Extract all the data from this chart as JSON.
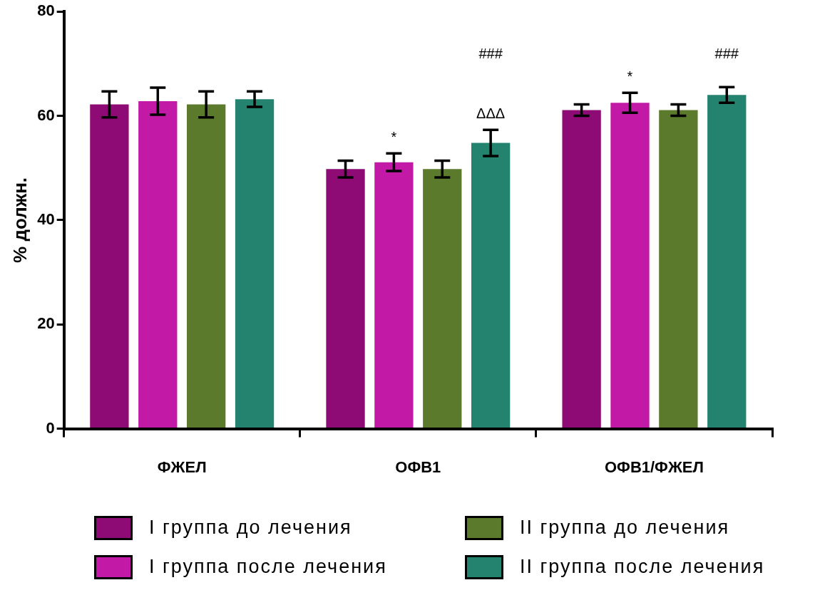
{
  "chart_data": {
    "type": "bar",
    "ylabel": "% должн.",
    "categories": [
      "ФЖЕЛ",
      "ОФВ1",
      "ОФВ1/ФЖЕЛ"
    ],
    "series": [
      {
        "name": "I группа до лечения",
        "color": "#8e0a74",
        "values": [
          62.2,
          49.8,
          61.1
        ],
        "errors": [
          2.5,
          1.6,
          1.1
        ]
      },
      {
        "name": "I группа после лечения",
        "color": "#c21aa6",
        "values": [
          62.8,
          51.1,
          62.5
        ],
        "errors": [
          2.6,
          1.7,
          1.9
        ]
      },
      {
        "name": "II группа до лечения",
        "color": "#5b7a2b",
        "values": [
          62.2,
          49.8,
          61.1
        ],
        "errors": [
          2.5,
          1.6,
          1.1
        ]
      },
      {
        "name": "II группа после лечения",
        "color": "#23836f",
        "values": [
          63.2,
          54.8,
          64.0
        ],
        "errors": [
          1.5,
          2.5,
          1.5
        ]
      }
    ],
    "annotations": [
      "*",
      "ΔΔΔ",
      "###",
      "*",
      "###"
    ],
    "ylim": [
      0,
      80
    ],
    "yticks": [
      0,
      20,
      40,
      60,
      80
    ],
    "grid": false,
    "legend": "bottom"
  }
}
